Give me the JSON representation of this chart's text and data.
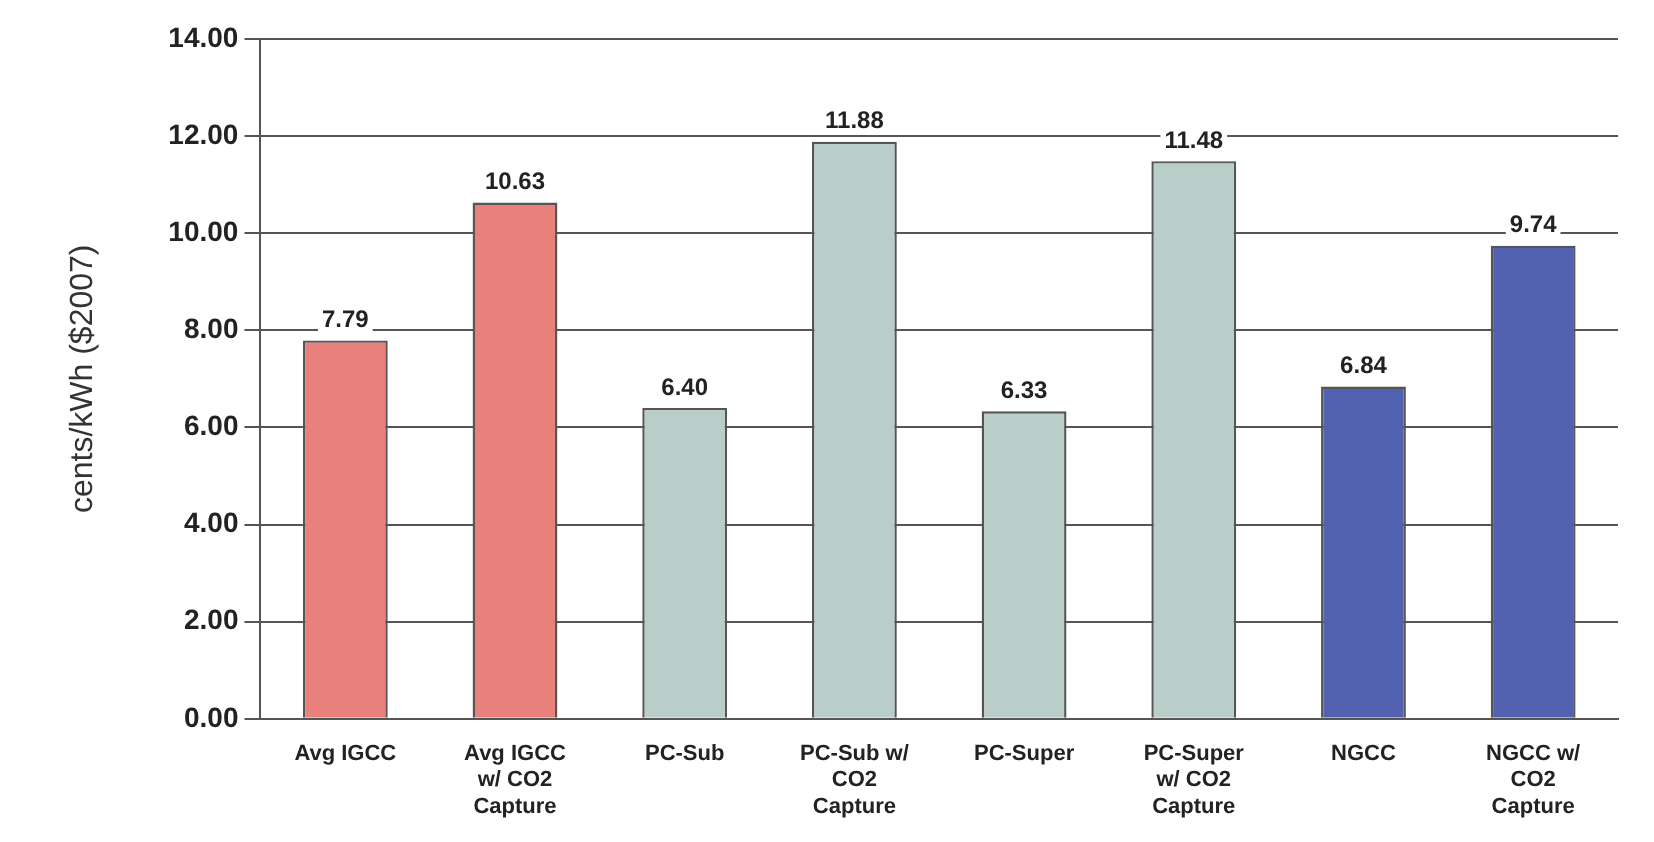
{
  "chart_data": {
    "type": "bar",
    "ylabel": "cents/kWh ($2007)",
    "categories": [
      "Avg IGCC",
      "Avg IGCC w/ CO2 Capture",
      "PC-Sub",
      "PC-Sub w/ CO2 Capture",
      "PC-Super",
      "PC-Super w/ CO2 Capture",
      "NGCC",
      "NGCC w/ CO2 Capture"
    ],
    "values": [
      7.79,
      10.63,
      6.4,
      11.88,
      6.33,
      11.48,
      6.84,
      9.74
    ],
    "value_labels": [
      "7.79",
      "10.63",
      "6.40",
      "11.88",
      "6.33",
      "11.48",
      "6.84",
      "9.74"
    ],
    "colors": [
      "#e8807c",
      "#e8807c",
      "#b9cdc9",
      "#b9cdc9",
      "#b9cdc9",
      "#b9cdc9",
      "#5262b0",
      "#5262b0"
    ],
    "ylim": [
      0,
      14
    ],
    "yticks": [
      {
        "value": 0,
        "label": "0.00"
      },
      {
        "value": 2,
        "label": "2.00"
      },
      {
        "value": 4,
        "label": "4.00"
      },
      {
        "value": 6,
        "label": "6.00"
      },
      {
        "value": 8,
        "label": "8.00"
      },
      {
        "value": 10,
        "label": "10.00"
      },
      {
        "value": 12,
        "label": "12.00"
      },
      {
        "value": 14,
        "label": "14.00"
      }
    ],
    "grid": "y",
    "legend": false
  }
}
